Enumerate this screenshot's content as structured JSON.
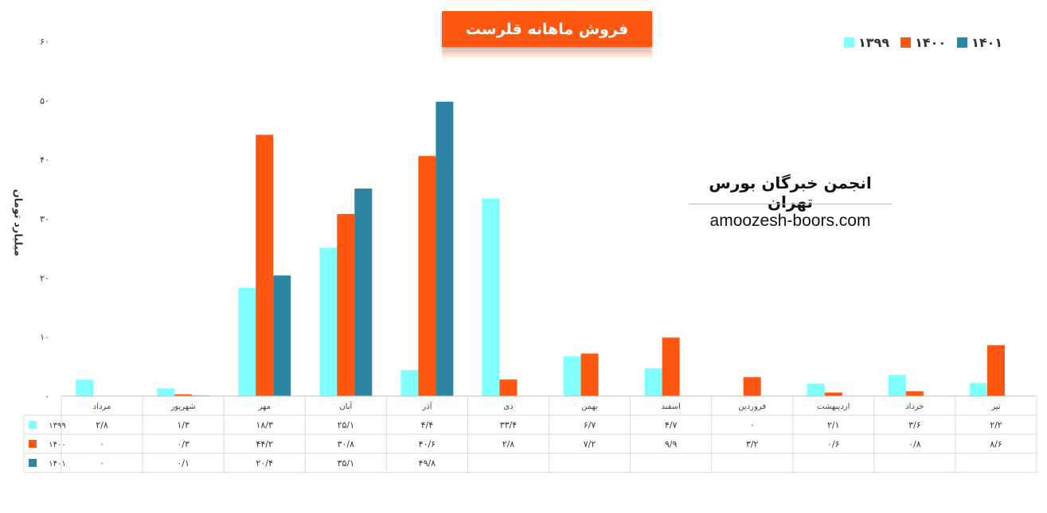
{
  "chart_data": {
    "type": "bar",
    "title": "فروش ماهانه قلرست",
    "ylabel": "میلیارد تومان",
    "ylim": [
      0,
      60
    ],
    "yticks": [
      "۰",
      "۱۰",
      "۲۰",
      "۳۰",
      "۴۰",
      "۵۰",
      "۶۰"
    ],
    "grid": false,
    "legend": "top-right",
    "categories": [
      "مرداد",
      "شهریور",
      "مهر",
      "آبان",
      "آذر",
      "دی",
      "بهمن",
      "اسفند",
      "فروردین",
      "اردیبهشت",
      "خرداد",
      "تیر"
    ],
    "series": [
      {
        "name": "۱۳۹۹",
        "color": "#7FFFFF",
        "values": [
          2.8,
          1.3,
          18.3,
          25.1,
          4.4,
          33.4,
          6.7,
          4.7,
          0,
          2.1,
          3.6,
          2.2
        ],
        "labels": [
          "۲/۸",
          "۱/۳",
          "۱۸/۳",
          "۲۵/۱",
          "۴/۴",
          "۳۳/۴",
          "۶/۷",
          "۴/۷",
          "۰",
          "۲/۱",
          "۳/۶",
          "۲/۲"
        ]
      },
      {
        "name": "۱۴۰۰",
        "color": "#FF5610",
        "values": [
          0,
          0.3,
          44.2,
          30.8,
          40.6,
          2.8,
          7.2,
          9.9,
          3.2,
          0.6,
          0.8,
          8.6
        ],
        "labels": [
          "۰",
          "۰/۳",
          "۴۴/۲",
          "۳۰/۸",
          "۴۰/۶",
          "۲/۸",
          "۷/۲",
          "۹/۹",
          "۳/۲",
          "۰/۶",
          "۰/۸",
          "۸/۶"
        ]
      },
      {
        "name": "۱۴۰۱",
        "color": "#2B85A3",
        "values": [
          0,
          0.1,
          20.4,
          35.1,
          49.8,
          null,
          null,
          null,
          null,
          null,
          null,
          null
        ],
        "labels": [
          "۰",
          "۰/۱",
          "۲۰/۴",
          "۳۵/۱",
          "۴۹/۸",
          "",
          "",
          "",
          "",
          "",
          "",
          ""
        ]
      }
    ]
  },
  "watermark": {
    "title": "انجمن خبرگان بورس تهران",
    "url": "amoozesh-boors.com"
  }
}
